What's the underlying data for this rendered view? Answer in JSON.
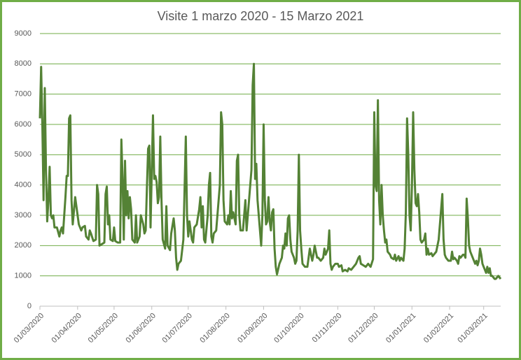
{
  "chart_data": {
    "type": "line",
    "title": "Visite 1 marzo 2020 - 15 Marzo 2021",
    "color": "#548235",
    "grid": true,
    "gridColor": "#70ad47",
    "xlim": [
      "01/03/2020",
      "15/03/2021"
    ],
    "xticks": [
      "01/03/2020",
      "01/04/2020",
      "01/05/2020",
      "01/06/2020",
      "01/07/2020",
      "01/08/2020",
      "01/09/2020",
      "01/10/2020",
      "01/11/2020",
      "01/12/2020",
      "01/01/2021",
      "01/02/2021",
      "01/03/2021"
    ],
    "ylim": [
      0,
      9000
    ],
    "yticks": [
      0,
      1000,
      2000,
      3000,
      4000,
      5000,
      6000,
      7000,
      8000,
      9000
    ],
    "x": [
      "01/03/2020",
      "02/03/2020",
      "03/03/2020",
      "04/03/2020",
      "05/03/2020",
      "06/03/2020",
      "07/03/2020",
      "08/03/2020",
      "09/03/2020",
      "10/03/2020",
      "11/03/2020",
      "12/03/2020",
      "13/03/2020",
      "15/03/2020",
      "17/03/2020",
      "18/03/2020",
      "19/03/2020",
      "20/03/2020",
      "22/03/2020",
      "23/03/2020",
      "24/03/2020",
      "25/03/2020",
      "26/03/2020",
      "27/03/2020",
      "28/03/2020",
      "30/03/2020",
      "31/03/2020",
      "02/04/2020",
      "04/04/2020",
      "05/04/2020",
      "07/04/2020",
      "08/04/2020",
      "10/04/2020",
      "11/04/2020",
      "12/04/2020",
      "14/04/2020",
      "16/04/2020",
      "17/04/2020",
      "18/04/2020",
      "19/04/2020",
      "21/04/2020",
      "23/04/2020",
      "24/04/2020",
      "25/04/2020",
      "26/04/2020",
      "27/04/2020",
      "28/04/2020",
      "30/04/2020",
      "01/05/2020",
      "02/05/2020",
      "04/05/2020",
      "06/05/2020",
      "07/05/2020",
      "08/05/2020",
      "09/05/2020",
      "10/05/2020",
      "11/05/2020",
      "12/05/2020",
      "13/05/2020",
      "14/05/2020",
      "15/05/2020",
      "16/05/2020",
      "18/05/2020",
      "19/05/2020",
      "20/05/2020",
      "22/05/2020",
      "23/05/2020",
      "25/05/2020",
      "26/05/2020",
      "27/05/2020",
      "28/05/2020",
      "29/05/2020",
      "30/05/2020",
      "31/05/2020",
      "02/06/2020",
      "03/06/2020",
      "04/06/2020",
      "05/06/2020",
      "06/06/2020",
      "07/06/2020",
      "08/06/2020",
      "09/06/2020",
      "10/06/2020",
      "12/06/2020",
      "13/06/2020",
      "14/06/2020",
      "16/06/2020",
      "17/06/2020",
      "19/06/2020",
      "20/06/2020",
      "21/06/2020",
      "22/06/2020",
      "23/06/2020",
      "25/06/2020",
      "27/06/2020",
      "29/06/2020",
      "30/06/2020",
      "01/07/2020",
      "02/07/2020",
      "03/07/2020",
      "04/07/2020",
      "05/07/2020",
      "06/07/2020",
      "08/07/2020",
      "10/07/2020",
      "11/07/2020",
      "12/07/2020",
      "13/07/2020",
      "14/07/2020",
      "15/07/2020",
      "17/07/2020",
      "18/07/2020",
      "19/07/2020",
      "20/07/2020",
      "21/07/2020",
      "22/07/2020",
      "24/07/2020",
      "25/07/2020",
      "27/07/2020",
      "28/07/2020",
      "29/07/2020",
      "30/07/2020",
      "31/07/2020",
      "02/08/2020",
      "03/08/2020",
      "04/08/2020",
      "05/08/2020",
      "06/08/2020",
      "07/08/2020",
      "09/08/2020",
      "10/08/2020",
      "11/08/2020",
      "12/08/2020",
      "13/08/2020",
      "15/08/2020",
      "17/08/2020",
      "18/08/2020",
      "19/08/2020",
      "20/08/2020",
      "22/08/2020",
      "23/08/2020",
      "24/08/2020",
      "25/08/2020",
      "26/08/2020",
      "27/08/2020",
      "29/08/2020",
      "30/08/2020",
      "31/08/2020",
      "01/09/2020",
      "02/09/2020",
      "03/09/2020",
      "04/09/2020",
      "05/09/2020",
      "06/09/2020",
      "07/09/2020",
      "08/09/2020",
      "09/09/2020",
      "10/09/2020",
      "11/09/2020",
      "12/09/2020",
      "14/09/2020",
      "16/09/2020",
      "17/09/2020",
      "18/09/2020",
      "19/09/2020",
      "20/09/2020",
      "21/09/2020",
      "22/09/2020",
      "23/09/2020",
      "24/09/2020",
      "26/09/2020",
      "27/09/2020",
      "28/09/2020",
      "29/09/2020",
      "30/09/2020",
      "01/10/2020",
      "02/10/2020",
      "03/10/2020",
      "05/10/2020",
      "07/10/2020",
      "08/10/2020",
      "09/10/2020",
      "10/10/2020",
      "11/10/2020",
      "12/10/2020",
      "13/10/2020",
      "14/10/2020",
      "15/10/2020",
      "16/10/2020",
      "18/10/2020",
      "20/10/2020",
      "21/10/2020",
      "22/10/2020",
      "24/10/2020",
      "25/10/2020",
      "26/10/2020",
      "27/10/2020",
      "28/10/2020",
      "30/10/2020",
      "01/11/2020",
      "02/11/2020",
      "04/11/2020",
      "05/11/2020",
      "07/11/2020",
      "09/11/2020",
      "10/11/2020",
      "12/11/2020",
      "14/11/2020",
      "16/11/2020",
      "18/11/2020",
      "19/11/2020",
      "20/11/2020",
      "22/11/2020",
      "24/11/2020",
      "26/11/2020",
      "28/11/2020",
      "30/11/2020",
      "01/12/2020",
      "02/12/2020",
      "03/12/2020",
      "04/12/2020",
      "05/12/2020",
      "06/12/2020",
      "07/12/2020",
      "08/12/2020",
      "09/12/2020",
      "10/12/2020",
      "11/12/2020",
      "12/12/2020",
      "14/12/2020",
      "15/12/2020",
      "17/12/2020",
      "18/12/2020",
      "19/12/2020",
      "21/12/2020",
      "22/12/2020",
      "23/12/2020",
      "25/12/2020",
      "26/12/2020",
      "27/12/2020",
      "28/12/2020",
      "29/12/2020",
      "30/12/2020",
      "31/12/2020",
      "01/01/2021",
      "02/01/2021",
      "03/01/2021",
      "04/01/2021",
      "05/01/2021",
      "06/01/2021",
      "07/01/2021",
      "08/01/2021",
      "09/01/2021",
      "11/01/2021",
      "12/01/2021",
      "13/01/2021",
      "14/01/2021",
      "15/01/2021",
      "17/01/2021",
      "18/01/2021",
      "19/01/2021",
      "21/01/2021",
      "22/01/2021",
      "23/01/2021",
      "25/01/2021",
      "26/01/2021",
      "27/01/2021",
      "28/01/2021",
      "29/01/2021",
      "31/01/2021",
      "02/02/2021",
      "03/02/2021",
      "04/02/2021",
      "05/02/2021",
      "07/02/2021",
      "08/02/2021",
      "09/02/2021",
      "10/02/2021",
      "12/02/2021",
      "13/02/2021",
      "14/02/2021",
      "15/02/2021",
      "16/02/2021",
      "17/02/2021",
      "18/02/2021",
      "20/02/2021",
      "21/02/2021",
      "22/02/2021",
      "23/02/2021",
      "24/02/2021",
      "25/02/2021",
      "26/02/2021",
      "27/02/2021",
      "28/02/2021",
      "01/03/2021",
      "02/03/2021",
      "03/03/2021",
      "04/03/2021",
      "05/03/2021",
      "06/03/2021",
      "07/03/2021",
      "08/03/2021",
      "09/03/2021",
      "10/03/2021",
      "11/03/2021",
      "12/03/2021",
      "13/03/2021",
      "14/03/2021",
      "15/03/2021"
    ],
    "values": [
      6200,
      7900,
      6000,
      3500,
      7200,
      4500,
      2800,
      3500,
      4600,
      3000,
      2900,
      3000,
      2600,
      2600,
      2300,
      2500,
      2600,
      2400,
      3600,
      4300,
      4300,
      6200,
      6300,
      3500,
      2700,
      3600,
      3300,
      2700,
      2500,
      2600,
      2650,
      2300,
      2200,
      2500,
      2400,
      2150,
      2200,
      4000,
      3700,
      2000,
      2050,
      2100,
      3700,
      3950,
      2700,
      3000,
      2200,
      2150,
      2600,
      2150,
      2100,
      2100,
      5500,
      4200,
      2200,
      4800,
      3000,
      3800,
      2900,
      3600,
      3200,
      2200,
      2100,
      3000,
      2100,
      2300,
      3000,
      2700,
      2400,
      2500,
      3900,
      5200,
      5300,
      2600,
      6300,
      4200,
      4300,
      4100,
      3400,
      3600,
      5600,
      3500,
      2200,
      1900,
      3300,
      2000,
      1850,
      2400,
      2900,
      2500,
      1600,
      1200,
      1400,
      1500,
      2200,
      5600,
      3000,
      2300,
      2800,
      2500,
      2200,
      2100,
      2600,
      2700,
      3200,
      3600,
      2600,
      3300,
      2200,
      2100,
      3000,
      4000,
      4400,
      2300,
      2100,
      2400,
      2500,
      3000,
      4000,
      6400,
      6000,
      3500,
      2800,
      2700,
      3000,
      2700,
      3800,
      2900,
      3100,
      2700,
      4800,
      5000,
      3000,
      2500,
      2500,
      3500,
      2500,
      3000,
      3500,
      4500,
      7300,
      8000,
      4200,
      4700,
      3500,
      2500,
      2000,
      3000,
      6000,
      3500,
      2700,
      2800,
      3600,
      2800,
      2500,
      3100,
      3200,
      1900,
      1300,
      1050,
      1400,
      1600,
      2000,
      1900,
      2400,
      2000,
      2900,
      3000,
      2200,
      1800,
      1600,
      1400,
      1500,
      2500,
      5000,
      2500,
      1900,
      1400,
      1300,
      1300,
      1600,
      1900,
      1700,
      1500,
      1700,
      2000,
      1800,
      1600,
      1600,
      1500,
      1600,
      1900,
      1700,
      1900,
      2500,
      1400,
      1200,
      1300,
      1400,
      1400,
      1300,
      1350,
      1150,
      1200,
      1150,
      1250,
      1200,
      1300,
      1400,
      1600,
      1650,
      1400,
      1350,
      1300,
      1400,
      1300,
      1550,
      6400,
      4000,
      3800,
      6800,
      3500,
      2700,
      4000,
      3000,
      2500,
      2100,
      2200,
      1800,
      1700,
      1600,
      1550,
      1700,
      1500,
      1650,
      1500,
      1600,
      1500,
      1900,
      3100,
      6200,
      5000,
      3000,
      2500,
      4000,
      6400,
      4500,
      3400,
      3300,
      3700,
      3100,
      2200,
      2100,
      2200,
      2400,
      1700,
      1900,
      1700,
      1750,
      1650,
      1700,
      1800,
      2000,
      2200,
      3200,
      3700,
      2200,
      1700,
      1600,
      1500,
      1500,
      1800,
      1550,
      1600,
      1500,
      1400,
      1650,
      1600,
      1700,
      1700,
      1600,
      3550,
      2900,
      2000,
      1800,
      1600,
      1500,
      1400,
      1500,
      1350,
      1500,
      1900,
      1700,
      1400,
      1300,
      1200,
      1100,
      1300,
      1100,
      1250,
      1000,
      1000,
      950,
      900,
      900,
      950,
      1000,
      950,
      900
    ]
  }
}
